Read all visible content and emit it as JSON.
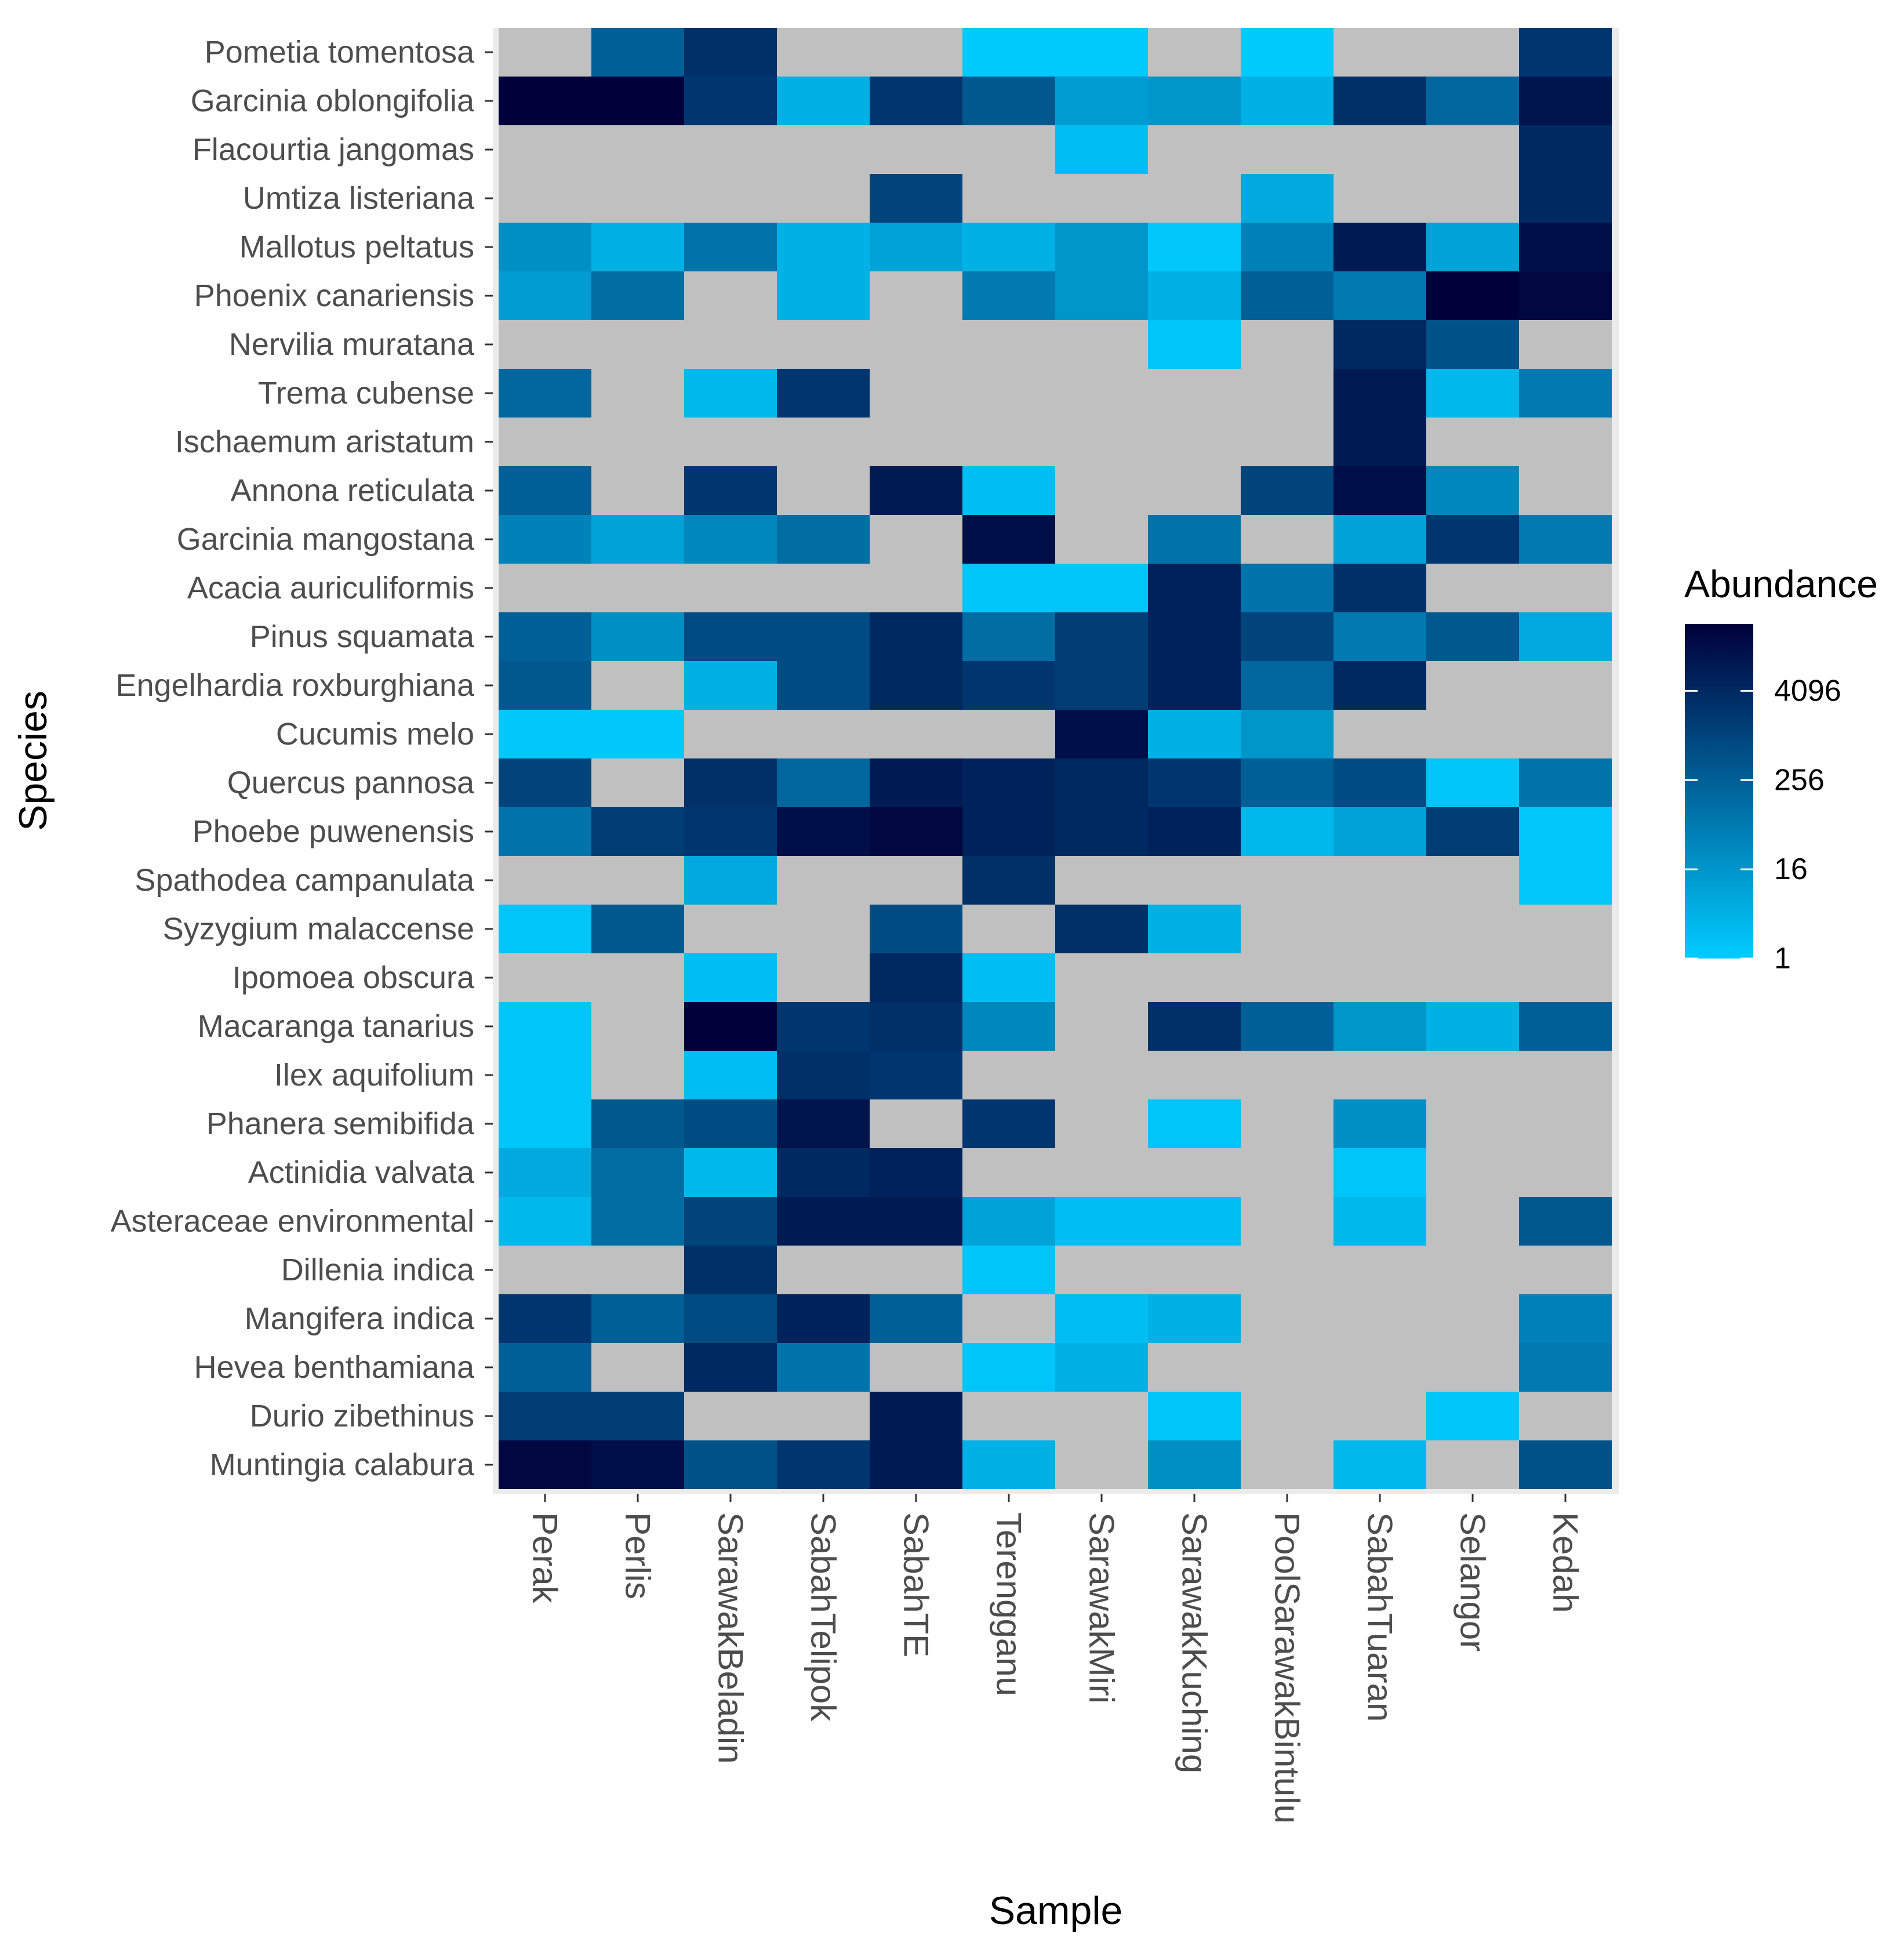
{
  "chart_data": {
    "type": "heatmap",
    "xlabel": "Sample",
    "ylabel": "Species",
    "legend": {
      "title": "Abundance",
      "ticks": [
        1,
        16,
        256,
        4096
      ],
      "tick_labels": [
        "1",
        "16",
        "256",
        "4096"
      ],
      "range_log2": [
        0,
        15
      ],
      "scale": "log2",
      "placement": "right"
    },
    "colors": {
      "low": "#00CCFF",
      "high": "#00003A",
      "missing": "#C0C0C0",
      "panel_background": "#EBEBEB",
      "tick": "#333333"
    },
    "samples": [
      "Perak",
      "Perlis",
      "SarawakBeladin",
      "SabahTelipok",
      "SabahTE",
      "Terengganu",
      "SarawakMiri",
      "SarawakKuching",
      "PoolSarawakBintulu",
      "SabahTuaran",
      "Selangor",
      "Kedah"
    ],
    "species": [
      "Pometia tomentosa",
      "Garcinia oblongifolia",
      "Flacourtia jangomas",
      "Umtiza listeriana",
      "Mallotus peltatus",
      "Phoenix canariensis",
      "Nervilia muratana",
      "Trema cubense",
      "Ischaemum aristatum",
      "Annona reticulata",
      "Garcinia mangostana",
      "Acacia auriculiformis",
      "Pinus squamata",
      "Engelhardia roxburghiana",
      "Cucumis melo",
      "Quercus pannosa",
      "Phoebe puwenensis",
      "Spathodea campanulata",
      "Syzygium malaccense",
      "Ipomoea obscura",
      "Macaranga tanarius",
      "Ilex aquifolium",
      "Phanera semibifida",
      "Actinidia valvata",
      "Asteraceae environmental",
      "Dillenia indica",
      "Mangifera indica",
      "Hevea benthamiana",
      "Durio zibethinus",
      "Muntingia calabura"
    ],
    "log2_values": [
      [
        null,
        8,
        11.5,
        null,
        null,
        0.2,
        0.2,
        null,
        0.2,
        null,
        null,
        11
      ],
      [
        15,
        15,
        11,
        2,
        11,
        8.5,
        3.5,
        4,
        2,
        11.5,
        7.5,
        13.5
      ],
      [
        null,
        null,
        null,
        null,
        null,
        null,
        1,
        null,
        null,
        null,
        null,
        12
      ],
      [
        null,
        null,
        null,
        null,
        10,
        null,
        null,
        null,
        2.5,
        null,
        null,
        12
      ],
      [
        4.5,
        2,
        6.5,
        2,
        3,
        2,
        4,
        0.3,
        5.5,
        13,
        3,
        14
      ],
      [
        3.5,
        7,
        null,
        2,
        null,
        6,
        4,
        2,
        8,
        6,
        15,
        14.5
      ],
      [
        null,
        null,
        null,
        null,
        null,
        null,
        null,
        0.5,
        null,
        12,
        9,
        null
      ],
      [
        7.5,
        null,
        1.5,
        11,
        null,
        null,
        null,
        null,
        null,
        13,
        1.5,
        6
      ],
      [
        null,
        null,
        null,
        null,
        null,
        null,
        null,
        null,
        null,
        13,
        null,
        null
      ],
      [
        8,
        null,
        11,
        null,
        13,
        1,
        null,
        null,
        10,
        14,
        5,
        null
      ],
      [
        5.5,
        3,
        5,
        7,
        null,
        14,
        null,
        6.5,
        null,
        3,
        11,
        6
      ],
      [
        null,
        null,
        null,
        null,
        null,
        0.5,
        0.5,
        12.5,
        6.5,
        11.5,
        null,
        null
      ],
      [
        8,
        4.5,
        9.5,
        9.5,
        12,
        7,
        10.5,
        12.5,
        10,
        6,
        8.5,
        2.5
      ],
      [
        8.5,
        null,
        2,
        9.5,
        12,
        11,
        10.5,
        12.5,
        7.5,
        12,
        null,
        null
      ],
      [
        0.3,
        0.3,
        null,
        null,
        null,
        null,
        14,
        2,
        4,
        null,
        null,
        null
      ],
      [
        10,
        null,
        11.5,
        7.5,
        13,
        12.5,
        12,
        11,
        8,
        9.5,
        0.5,
        6.5
      ],
      [
        6.5,
        10.5,
        11,
        14,
        14.5,
        12.5,
        12,
        12.5,
        1.5,
        3,
        10.5,
        0.3
      ],
      [
        null,
        null,
        2.5,
        null,
        null,
        11.5,
        null,
        null,
        null,
        null,
        null,
        0.3
      ],
      [
        0.5,
        8.5,
        null,
        null,
        9.5,
        null,
        11.5,
        2,
        null,
        null,
        null,
        null
      ],
      [
        null,
        null,
        1,
        null,
        12,
        1,
        null,
        null,
        null,
        null,
        null,
        null
      ],
      [
        0.5,
        null,
        15,
        11,
        11.5,
        5,
        null,
        11.5,
        8,
        4,
        2,
        8
      ],
      [
        0.5,
        null,
        1,
        11.5,
        11,
        null,
        null,
        null,
        null,
        null,
        null,
        null
      ],
      [
        0.5,
        8.5,
        9.5,
        13.5,
        null,
        11,
        null,
        0.5,
        null,
        4.5,
        null,
        null
      ],
      [
        2.5,
        7,
        1.5,
        12,
        12.5,
        null,
        null,
        null,
        null,
        0.5,
        null,
        null
      ],
      [
        1.5,
        7,
        10,
        13,
        13,
        3,
        1,
        1,
        null,
        1.5,
        null,
        8.5
      ],
      [
        null,
        null,
        11.5,
        null,
        null,
        0.5,
        null,
        null,
        null,
        null,
        null,
        null
      ],
      [
        11,
        8,
        9.5,
        12.5,
        8,
        null,
        1,
        2,
        null,
        null,
        null,
        5.5
      ],
      [
        8,
        null,
        12,
        6.5,
        null,
        0.5,
        2,
        null,
        null,
        null,
        null,
        6
      ],
      [
        10.5,
        10.5,
        null,
        null,
        13,
        null,
        null,
        0.5,
        null,
        null,
        0.5,
        null
      ],
      [
        14.5,
        14,
        9,
        11,
        13,
        2,
        null,
        4.5,
        null,
        1.5,
        null,
        9
      ]
    ]
  }
}
